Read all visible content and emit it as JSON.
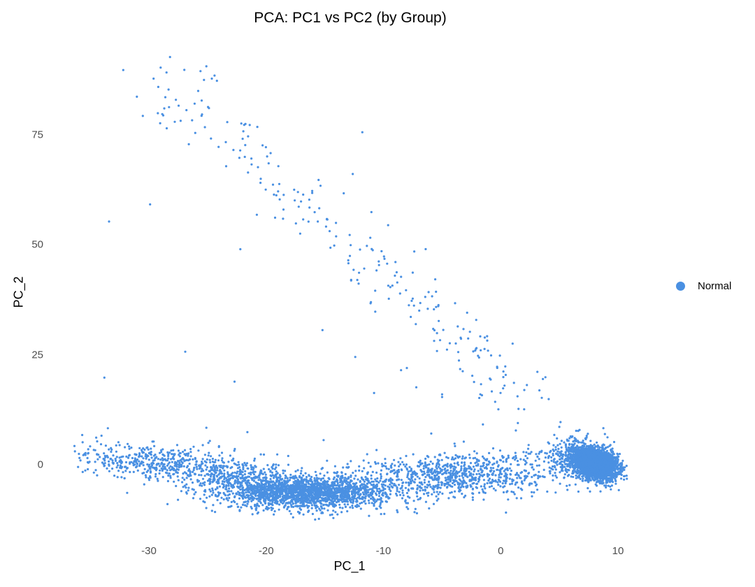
{
  "chart_data": {
    "type": "scatter",
    "title": "PCA: PC1 vs PC2 (by Group)",
    "xlabel": "PC_1",
    "ylabel": "PC_2",
    "xlim": [
      -37,
      11
    ],
    "ylim": [
      -13,
      93
    ],
    "x_ticks": [
      {
        "value": -30,
        "label": "-30"
      },
      {
        "value": -20,
        "label": "-20"
      },
      {
        "value": -10,
        "label": "-10"
      },
      {
        "value": 0,
        "label": "0"
      },
      {
        "value": 10,
        "label": "10"
      }
    ],
    "y_ticks": [
      {
        "value": 0,
        "label": "0"
      },
      {
        "value": 25,
        "label": "25"
      },
      {
        "value": 50,
        "label": "50"
      },
      {
        "value": 75,
        "label": "75"
      }
    ],
    "grid": false,
    "legend": {
      "position": "right",
      "entries": [
        {
          "label": "Normal",
          "color": "#4a90e2"
        }
      ]
    },
    "series": [
      {
        "name": "Normal",
        "color": "#4a90e2",
        "description": "Single group; points form a dense horizontal band near PC_2 ≈ -5..3 spanning PC_1 ≈ -36..10, a very dense cluster around PC_1 ≈ 7..10 / PC_2 ≈ -4..4, and a sparse diagonal arm from (PC_1 ≈ -30, PC_2 ≈ 90) down to (PC_1 ≈ 3, PC_2 ≈ 13).",
        "clusters": [
          {
            "name": "dense-right-cluster",
            "n": 2600,
            "cx": 8.1,
            "cy": 0.2,
            "sx": 0.95,
            "sy": 1.7,
            "tilt": -0.55
          },
          {
            "name": "right-halo",
            "n": 300,
            "cx": 6.2,
            "cy": 1.8,
            "sx": 1.4,
            "sy": 2.3,
            "tilt": 0.0
          },
          {
            "name": "central-dense-band",
            "n": 1900,
            "cx": -16.5,
            "cy": -6.3,
            "sx": 3.3,
            "sy": 1.8,
            "tilt": 0.0
          },
          {
            "name": "left-tail-band",
            "n": 480,
            "cx": -29.5,
            "cy": 0.5,
            "sx": 3.4,
            "sy": 2.1,
            "tilt": -0.22
          },
          {
            "name": "mid-band-rising",
            "n": 900,
            "cx": -4.0,
            "cy": -2.5,
            "sx": 4.5,
            "sy": 2.6,
            "tilt": 0.12
          },
          {
            "name": "bridge-band",
            "n": 450,
            "cx": -22.0,
            "cy": -3.5,
            "sx": 2.4,
            "sy": 2.4,
            "tilt": -0.3
          }
        ],
        "arm": {
          "n": 230,
          "start": [
            -29.5,
            88.0
          ],
          "end": [
            3.0,
            14.0
          ],
          "spread_x": 1.6,
          "spread_y": 3.2
        },
        "outliers": [
          [
            -28.2,
            92.7
          ],
          [
            -29.0,
            90.3
          ],
          [
            -29.6,
            87.8
          ],
          [
            -29.2,
            85.9
          ],
          [
            -28.5,
            89.2
          ],
          [
            -25.6,
            89.5
          ],
          [
            -25.1,
            90.6
          ],
          [
            -24.4,
            88.5
          ],
          [
            -25.3,
            87.5
          ],
          [
            -24.2,
            87.3
          ],
          [
            -25.8,
            85.0
          ],
          [
            -26.1,
            82.1
          ],
          [
            -25.5,
            82.8
          ],
          [
            -11.8,
            75.6
          ],
          [
            -15.6,
            55.3
          ],
          [
            -29.9,
            59.2
          ],
          [
            -33.4,
            55.3
          ],
          [
            -22.2,
            49.0
          ],
          [
            -26.9,
            25.7
          ],
          [
            -33.8,
            19.8
          ],
          [
            -22.7,
            18.9
          ],
          [
            -15.2,
            30.6
          ],
          [
            -12.4,
            24.5
          ],
          [
            -10.8,
            16.3
          ],
          [
            -8.5,
            21.5
          ],
          [
            -8.0,
            22.0
          ],
          [
            -7.2,
            17.6
          ],
          [
            -5.0,
            15.4
          ],
          [
            -5.0,
            16.0
          ],
          [
            -1.6,
            15.8
          ],
          [
            -0.2,
            12.6
          ],
          [
            2.0,
            12.6
          ],
          [
            3.3,
            16.9
          ],
          [
            3.5,
            15.2
          ],
          [
            -33.5,
            8.3
          ],
          [
            -25.1,
            8.4
          ],
          [
            -21.6,
            7.4
          ],
          [
            -15.1,
            5.6
          ],
          [
            5.1,
            9.7
          ],
          [
            5.0,
            8.6
          ]
        ]
      }
    ]
  }
}
